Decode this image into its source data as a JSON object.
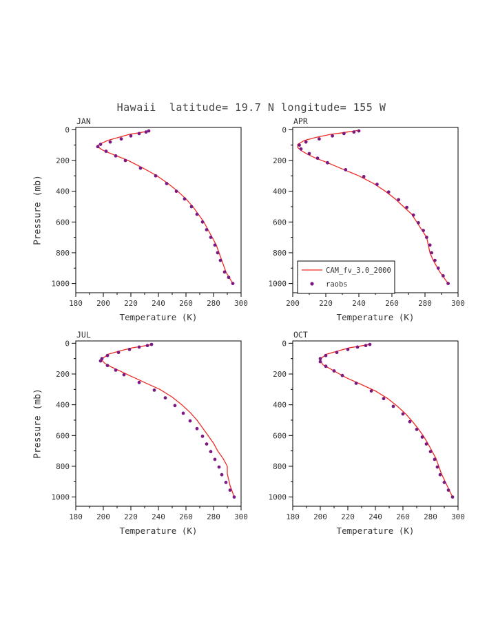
{
  "title": "Hawaii  latitude= 19.7 N longitude= 155 W",
  "xlabel": "Temperature (K)",
  "ylabel": "Pressure (mb)",
  "legend": {
    "line_label": "CAM_fv_3.0_2000",
    "dots_label": "raobs"
  },
  "colors": {
    "line": "#ee2a24",
    "dots": "#7a1a80",
    "axis": "#000000",
    "text": "#333333"
  },
  "chart_data": [
    {
      "type": "line+scatter",
      "label": "JAN",
      "xlabel": "Temperature (K)",
      "ylabel": "Pressure (mb)",
      "xlim": [
        180,
        300
      ],
      "xticks": [
        180,
        200,
        220,
        240,
        260,
        280,
        300
      ],
      "x_minor_step": 10,
      "ylim": [
        -15,
        1060
      ],
      "yticks": [
        0,
        200,
        400,
        600,
        800,
        1000
      ],
      "y_minor_step": 100,
      "legend_box": false,
      "series": [
        {
          "name": "CAM_fv_3.0_2000",
          "style": "line",
          "points": [
            [
              234,
              5
            ],
            [
              232,
              10
            ],
            [
              226,
              20
            ],
            [
              219,
              30
            ],
            [
              211,
              50
            ],
            [
              203,
              70
            ],
            [
              197,
              95
            ],
            [
              196,
              110
            ],
            [
              199,
              130
            ],
            [
              204,
              150
            ],
            [
              211,
              175
            ],
            [
              218,
              200
            ],
            [
              229,
              250
            ],
            [
              239,
              300
            ],
            [
              247,
              350
            ],
            [
              254,
              400
            ],
            [
              260,
              450
            ],
            [
              265,
              500
            ],
            [
              269,
              550
            ],
            [
              273,
              600
            ],
            [
              276,
              650
            ],
            [
              279,
              700
            ],
            [
              282,
              750
            ],
            [
              284,
              800
            ],
            [
              286,
              850
            ],
            [
              289,
              925
            ],
            [
              294,
              1000
            ]
          ]
        },
        {
          "name": "raobs",
          "style": "dots",
          "points": [
            [
              233,
              8
            ],
            [
              231,
              15
            ],
            [
              226,
              25
            ],
            [
              220,
              40
            ],
            [
              213,
              60
            ],
            [
              205,
              80
            ],
            [
              198,
              95
            ],
            [
              196,
              110
            ],
            [
              202,
              140
            ],
            [
              209,
              170
            ],
            [
              216,
              200
            ],
            [
              227,
              250
            ],
            [
              238,
              300
            ],
            [
              246,
              350
            ],
            [
              253,
              400
            ],
            [
              259,
              450
            ],
            [
              264,
              500
            ],
            [
              268,
              550
            ],
            [
              272,
              600
            ],
            [
              275,
              650
            ],
            [
              278,
              700
            ],
            [
              281,
              750
            ],
            [
              283,
              800
            ],
            [
              285,
              850
            ],
            [
              288,
              925
            ],
            [
              291,
              960
            ],
            [
              294,
              1000
            ]
          ]
        }
      ]
    },
    {
      "type": "line+scatter",
      "label": "APR",
      "xlabel": "Temperature (K)",
      "ylabel": "Pressure (mb)",
      "xlim": [
        200,
        300
      ],
      "xticks": [
        200,
        220,
        240,
        260,
        280,
        300
      ],
      "x_minor_step": 10,
      "ylim": [
        -15,
        1060
      ],
      "yticks": [
        0,
        200,
        400,
        600,
        800,
        1000
      ],
      "y_minor_step": 100,
      "legend_box": true,
      "series": [
        {
          "name": "CAM_fv_3.0_2000",
          "style": "line",
          "points": [
            [
              239,
              5
            ],
            [
              236,
              10
            ],
            [
              230,
              20
            ],
            [
              223,
              30
            ],
            [
              214,
              50
            ],
            [
              207,
              70
            ],
            [
              203,
              95
            ],
            [
              203,
              115
            ],
            [
              205,
              135
            ],
            [
              209,
              160
            ],
            [
              214,
              185
            ],
            [
              220,
              210
            ],
            [
              230,
              255
            ],
            [
              240,
              300
            ],
            [
              249,
              350
            ],
            [
              256,
              400
            ],
            [
              262,
              450
            ],
            [
              267,
              500
            ],
            [
              272,
              550
            ],
            [
              275,
              600
            ],
            [
              278,
              650
            ],
            [
              281,
              700
            ],
            [
              282,
              750
            ],
            [
              283,
              800
            ],
            [
              285,
              850
            ],
            [
              289,
              925
            ],
            [
              294,
              1000
            ]
          ]
        },
        {
          "name": "raobs",
          "style": "dots",
          "points": [
            [
              240,
              8
            ],
            [
              237,
              15
            ],
            [
              231,
              25
            ],
            [
              224,
              40
            ],
            [
              216,
              60
            ],
            [
              208,
              80
            ],
            [
              204,
              100
            ],
            [
              205,
              125
            ],
            [
              210,
              155
            ],
            [
              215,
              185
            ],
            [
              221,
              215
            ],
            [
              232,
              260
            ],
            [
              243,
              305
            ],
            [
              251,
              355
            ],
            [
              258,
              405
            ],
            [
              264,
              455
            ],
            [
              269,
              505
            ],
            [
              273,
              555
            ],
            [
              276,
              605
            ],
            [
              279,
              655
            ],
            [
              281,
              700
            ],
            [
              283,
              750
            ],
            [
              284,
              800
            ],
            [
              286,
              850
            ],
            [
              288,
              900
            ],
            [
              291,
              950
            ],
            [
              294,
              1000
            ]
          ]
        }
      ]
    },
    {
      "type": "line+scatter",
      "label": "JUL",
      "xlabel": "Temperature (K)",
      "ylabel": "Pressure (mb)",
      "xlim": [
        180,
        300
      ],
      "xticks": [
        180,
        200,
        220,
        240,
        260,
        280,
        300
      ],
      "x_minor_step": 10,
      "ylim": [
        -15,
        1060
      ],
      "yticks": [
        0,
        200,
        400,
        600,
        800,
        1000
      ],
      "y_minor_step": 100,
      "legend_box": false,
      "series": [
        {
          "name": "CAM_fv_3.0_2000",
          "style": "line",
          "points": [
            [
              236,
              5
            ],
            [
              234,
              10
            ],
            [
              228,
              20
            ],
            [
              221,
              30
            ],
            [
              212,
              50
            ],
            [
              204,
              70
            ],
            [
              200,
              95
            ],
            [
              199,
              110
            ],
            [
              201,
              130
            ],
            [
              206,
              155
            ],
            [
              212,
              180
            ],
            [
              219,
              210
            ],
            [
              230,
              255
            ],
            [
              241,
              300
            ],
            [
              250,
              350
            ],
            [
              257,
              400
            ],
            [
              263,
              450
            ],
            [
              268,
              500
            ],
            [
              272,
              550
            ],
            [
              276,
              600
            ],
            [
              280,
              650
            ],
            [
              283,
              700
            ],
            [
              287,
              750
            ],
            [
              290,
              800
            ],
            [
              290,
              850
            ],
            [
              292,
              925
            ],
            [
              295,
              1000
            ]
          ]
        },
        {
          "name": "raobs",
          "style": "dots",
          "points": [
            [
              235,
              8
            ],
            [
              232,
              15
            ],
            [
              226,
              25
            ],
            [
              219,
              40
            ],
            [
              211,
              60
            ],
            [
              203,
              80
            ],
            [
              199,
              100
            ],
            [
              198,
              115
            ],
            [
              203,
              145
            ],
            [
              209,
              175
            ],
            [
              215,
              205
            ],
            [
              226,
              255
            ],
            [
              237,
              305
            ],
            [
              245,
              355
            ],
            [
              252,
              405
            ],
            [
              258,
              455
            ],
            [
              263,
              505
            ],
            [
              268,
              555
            ],
            [
              272,
              605
            ],
            [
              275,
              655
            ],
            [
              278,
              705
            ],
            [
              281,
              755
            ],
            [
              284,
              805
            ],
            [
              286,
              855
            ],
            [
              289,
              905
            ],
            [
              292,
              955
            ],
            [
              295,
              1000
            ]
          ]
        }
      ]
    },
    {
      "type": "line+scatter",
      "label": "OCT",
      "xlabel": "Temperature (K)",
      "ylabel": "Pressure (mb)",
      "xlim": [
        180,
        300
      ],
      "xticks": [
        180,
        200,
        220,
        240,
        260,
        280,
        300
      ],
      "x_minor_step": 10,
      "ylim": [
        -15,
        1060
      ],
      "yticks": [
        0,
        200,
        400,
        600,
        800,
        1000
      ],
      "y_minor_step": 100,
      "legend_box": false,
      "series": [
        {
          "name": "CAM_fv_3.0_2000",
          "style": "line",
          "points": [
            [
              236,
              5
            ],
            [
              234,
              10
            ],
            [
              228,
              20
            ],
            [
              221,
              30
            ],
            [
              213,
              50
            ],
            [
              205,
              70
            ],
            [
              201,
              95
            ],
            [
              200,
              115
            ],
            [
              202,
              140
            ],
            [
              207,
              165
            ],
            [
              213,
              195
            ],
            [
              219,
              225
            ],
            [
              229,
              265
            ],
            [
              240,
              310
            ],
            [
              249,
              360
            ],
            [
              256,
              410
            ],
            [
              262,
              460
            ],
            [
              267,
              510
            ],
            [
              271,
              555
            ],
            [
              275,
              605
            ],
            [
              278,
              650
            ],
            [
              281,
              700
            ],
            [
              284,
              750
            ],
            [
              286,
              800
            ],
            [
              288,
              850
            ],
            [
              292,
              925
            ],
            [
              296,
              1000
            ]
          ]
        },
        {
          "name": "raobs",
          "style": "dots",
          "points": [
            [
              236,
              8
            ],
            [
              233,
              15
            ],
            [
              227,
              25
            ],
            [
              220,
              40
            ],
            [
              212,
              60
            ],
            [
              204,
              80
            ],
            [
              200,
              100
            ],
            [
              200,
              120
            ],
            [
              204,
              150
            ],
            [
              210,
              180
            ],
            [
              216,
              210
            ],
            [
              226,
              260
            ],
            [
              237,
              310
            ],
            [
              246,
              360
            ],
            [
              253,
              410
            ],
            [
              260,
              460
            ],
            [
              265,
              510
            ],
            [
              270,
              560
            ],
            [
              274,
              610
            ],
            [
              277,
              655
            ],
            [
              280,
              705
            ],
            [
              283,
              755
            ],
            [
              285,
              805
            ],
            [
              287,
              855
            ],
            [
              290,
              905
            ],
            [
              293,
              955
            ],
            [
              296,
              1000
            ]
          ]
        }
      ]
    }
  ]
}
